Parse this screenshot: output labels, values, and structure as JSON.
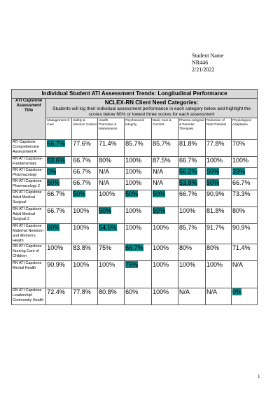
{
  "header": {
    "student_name": "Student Name",
    "course": "NR446",
    "date": "2/21/2022"
  },
  "table": {
    "title": "Individual Student ATI Assessment Trends: Longitudinal Performance",
    "capstone_header": "ATI Capstone Assessment Title",
    "categories_title": "NCLEX-RN Client Need Categories:",
    "categories_desc": "Students will log their individual assessment performance in each category below and highlight the scores below 60% or lowest three scores for each assessment",
    "columns": [
      "Management of Care",
      "Safety & Infection Control",
      "Health Promotion & Maintenance",
      "Psychosocial Integrity",
      "Basic Care & Comfort",
      "Pharma-cological & Parental Therapies",
      "Reduction of Risk Potential",
      "Physiological Adaptation"
    ],
    "rows": [
      {
        "name": "ATI Capstone Comprehensive Assessment A",
        "values": [
          "66.7%",
          "77.6%",
          "71.4%",
          "85.7%",
          "85.7%",
          "81.8%",
          "77.8%",
          "70%"
        ]
      },
      {
        "name": "RN ATI Capstone-Fundamentals",
        "values": [
          "63.6%",
          "66.7%",
          "80%",
          "100%",
          "87.5%",
          "66.7%",
          "100%",
          "100%"
        ]
      },
      {
        "name": "RN ATI Capstone-Pharmacology",
        "values": [
          "0%",
          "66.7%",
          "N/A",
          "100%",
          "N/A",
          "66.2%",
          "50%",
          "33%"
        ]
      },
      {
        "name": "RN ATI Capstone Pharmacology 2",
        "values": [
          "50%",
          "66.7%",
          "N/A",
          "100%",
          "N/A",
          "53.8%",
          "50%",
          "66.7%"
        ]
      },
      {
        "name": "RN ATI Capstone Adult Medical Surgical",
        "values": [
          "66.7%",
          "50%",
          "100%",
          "50%",
          "50%",
          "66.7%",
          "90.9%",
          "73.3%"
        ]
      },
      {
        "name": "RN ATI Capstone Adult Medical Surgical 2",
        "values": [
          "66.7%",
          "100%",
          "50%",
          "100%",
          "50%",
          "100%",
          "81.8%",
          "80%"
        ]
      },
      {
        "name": "RN ATI Capstone Maternal Newborn and Women's Health",
        "values": [
          "50%",
          "100%",
          "54.5%",
          "100%",
          "100%",
          "85.7%",
          "91.7%",
          "90.9%"
        ]
      },
      {
        "name": "RN ATI Capstone Nursing Care of Children",
        "values": [
          "100%",
          "83.8%",
          "75%",
          "66.7%",
          "100%",
          "80%",
          "80%",
          "71.4%"
        ]
      },
      {
        "name": "RN ATI Capstone Mental Health",
        "values": [
          "90.9%",
          "100%",
          "100%",
          "76%",
          "100%",
          "100%",
          "100%",
          "N/A"
        ]
      },
      {
        "name": "RN ATI Capstone Leadership/ Community Health",
        "values": [
          "72.4%",
          "77.8%",
          "80.8%",
          "60%",
          "100%",
          "N/A",
          "N/A",
          "0%"
        ]
      }
    ],
    "highlights": [
      [
        0
      ],
      [
        0
      ],
      [
        0,
        5,
        6,
        7
      ],
      [
        0,
        5,
        6
      ],
      [
        1,
        3,
        4
      ],
      [
        2,
        4
      ],
      [
        0,
        2
      ],
      [
        3
      ],
      [
        3
      ],
      [
        7
      ]
    ],
    "highlight_color": "#0d8a8a"
  },
  "footer": {
    "page_number": "1"
  }
}
